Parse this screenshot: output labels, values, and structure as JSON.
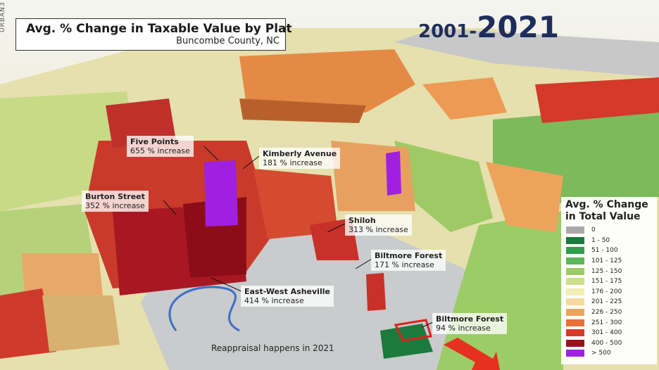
{
  "brand": "URBAN3",
  "header": {
    "title": "Avg. % Change in Taxable Value by Plat",
    "subtitle": "Buncombe County, NC"
  },
  "years": {
    "start": "2001-",
    "end": "2021"
  },
  "annotations": [
    {
      "name": "Five Points",
      "detail": "655 % increase"
    },
    {
      "name": "Kimberly Avenue",
      "detail": "181 % increase"
    },
    {
      "name": "Burton Street",
      "detail": "352 % increase"
    },
    {
      "name": "Shiloh",
      "detail": "313 % increase"
    },
    {
      "name": "Biltmore Forest",
      "detail": "171 % increase"
    },
    {
      "name": "East-West Asheville",
      "detail": "414 % increase"
    },
    {
      "name": "Biltmore Forest",
      "detail": "94 % increase"
    }
  ],
  "note": "Reappraisal happens in 2021",
  "legend": {
    "title": "Avg. % Change in Total Value",
    "items": [
      {
        "label": "0",
        "color": "#a9a9a9"
      },
      {
        "label": "1 - 50",
        "color": "#1b7a3c"
      },
      {
        "label": "51 - 100",
        "color": "#2f9e4c"
      },
      {
        "label": "101 - 125",
        "color": "#5cb85c"
      },
      {
        "label": "125 - 150",
        "color": "#9ccc65"
      },
      {
        "label": "151 - 175",
        "color": "#cfe08c"
      },
      {
        "label": "176 - 200",
        "color": "#f2eeb4"
      },
      {
        "label": "201 - 225",
        "color": "#f3d9a0"
      },
      {
        "label": "226 - 250",
        "color": "#eea35c"
      },
      {
        "label": "251 - 300",
        "color": "#e8703a"
      },
      {
        "label": "301 - 400",
        "color": "#d4392a"
      },
      {
        "label": "400 - 500",
        "color": "#9e0f1c"
      },
      {
        "label": "> 500",
        "color": "#a020e0"
      }
    ]
  }
}
